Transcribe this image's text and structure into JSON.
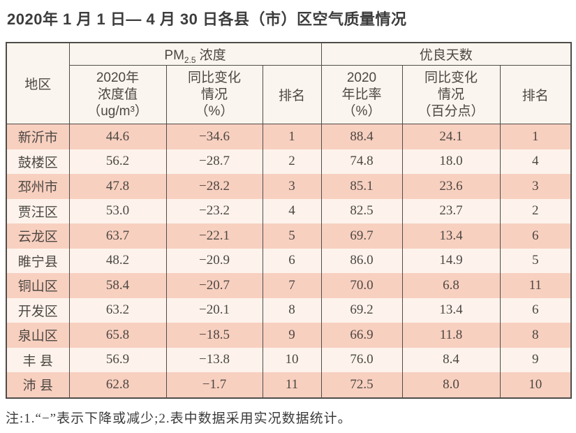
{
  "page": {
    "title": "2020年 1 月 1 日— 4 月 30 日各县（市）区空气质量情况",
    "footnote": "注:1.“−”表示下降或减少;2.表中数据采用实况数据统计。"
  },
  "colors": {
    "row_odd_bg": "#f8d0c0",
    "row_even_bg": "#fdf3ec",
    "header_bg": "#faf5ee",
    "border": "#4f4c49",
    "text": "#4c4742"
  },
  "table": {
    "group_headers": {
      "region": "地区",
      "pm25": {
        "prefix": "PM",
        "sub": "2.5",
        "suffix": "浓度"
      },
      "good_days": "优良天数"
    },
    "sub_headers": {
      "pm25_value_lines": [
        "2020年",
        "浓度值",
        "（ug/m³）"
      ],
      "pm25_change_lines": [
        "同比变化",
        "情况",
        "（%）"
      ],
      "pm25_rank": "排名",
      "good_ratio_lines": [
        "2020",
        "年比率",
        "（%）"
      ],
      "good_change_lines": [
        "同比变化",
        "情况",
        "（百分点）"
      ],
      "good_rank": "排名"
    },
    "rows": [
      {
        "region": "新沂市",
        "pm25_value": "44.6",
        "pm25_change": "−34.6",
        "pm25_rank": "1",
        "good_ratio": "88.4",
        "good_change": "24.1",
        "good_rank": "1"
      },
      {
        "region": "鼓楼区",
        "pm25_value": "56.2",
        "pm25_change": "−28.7",
        "pm25_rank": "2",
        "good_ratio": "74.8",
        "good_change": "18.0",
        "good_rank": "4"
      },
      {
        "region": "邳州市",
        "pm25_value": "47.8",
        "pm25_change": "−28.2",
        "pm25_rank": "3",
        "good_ratio": "85.1",
        "good_change": "23.6",
        "good_rank": "3"
      },
      {
        "region": "贾汪区",
        "pm25_value": "53.0",
        "pm25_change": "−23.2",
        "pm25_rank": "4",
        "good_ratio": "82.5",
        "good_change": "23.7",
        "good_rank": "2"
      },
      {
        "region": "云龙区",
        "pm25_value": "63.7",
        "pm25_change": "−22.1",
        "pm25_rank": "5",
        "good_ratio": "69.7",
        "good_change": "13.4",
        "good_rank": "6"
      },
      {
        "region": "睢宁县",
        "pm25_value": "48.2",
        "pm25_change": "−20.9",
        "pm25_rank": "6",
        "good_ratio": "86.0",
        "good_change": "14.9",
        "good_rank": "5"
      },
      {
        "region": "铜山区",
        "pm25_value": "58.4",
        "pm25_change": "−20.7",
        "pm25_rank": "7",
        "good_ratio": "70.0",
        "good_change": "6.8",
        "good_rank": "11"
      },
      {
        "region": "开发区",
        "pm25_value": "63.2",
        "pm25_change": "−20.1",
        "pm25_rank": "8",
        "good_ratio": "69.2",
        "good_change": "13.4",
        "good_rank": "6"
      },
      {
        "region": "泉山区",
        "pm25_value": "65.8",
        "pm25_change": "−18.5",
        "pm25_rank": "9",
        "good_ratio": "66.9",
        "good_change": "11.8",
        "good_rank": "8"
      },
      {
        "region": "丰 县",
        "pm25_value": "56.9",
        "pm25_change": "−13.8",
        "pm25_rank": "10",
        "good_ratio": "76.0",
        "good_change": "8.4",
        "good_rank": "9"
      },
      {
        "region": "沛 县",
        "pm25_value": "62.8",
        "pm25_change": "−1.7",
        "pm25_rank": "11",
        "good_ratio": "72.5",
        "good_change": "8.0",
        "good_rank": "10"
      }
    ]
  },
  "chart_data": {
    "type": "table",
    "title": "2020年1月1日—4月30日各县（市）区空气质量情况",
    "columns": [
      "地区",
      "PM2.5浓度 2020年浓度值（ug/m³）",
      "PM2.5浓度 同比变化情况（%）",
      "PM2.5浓度 排名",
      "优良天数 2020年比率（%）",
      "优良天数 同比变化情况（百分点）",
      "优良天数 排名"
    ],
    "rows": [
      [
        "新沂市",
        44.6,
        -34.6,
        1,
        88.4,
        24.1,
        1
      ],
      [
        "鼓楼区",
        56.2,
        -28.7,
        2,
        74.8,
        18.0,
        4
      ],
      [
        "邳州市",
        47.8,
        -28.2,
        3,
        85.1,
        23.6,
        3
      ],
      [
        "贾汪区",
        53.0,
        -23.2,
        4,
        82.5,
        23.7,
        2
      ],
      [
        "云龙区",
        63.7,
        -22.1,
        5,
        69.7,
        13.4,
        6
      ],
      [
        "睢宁县",
        48.2,
        -20.9,
        6,
        86.0,
        14.9,
        5
      ],
      [
        "铜山区",
        58.4,
        -20.7,
        7,
        70.0,
        6.8,
        11
      ],
      [
        "开发区",
        63.2,
        -20.1,
        8,
        69.2,
        13.4,
        6
      ],
      [
        "泉山区",
        65.8,
        -18.5,
        9,
        66.9,
        11.8,
        8
      ],
      [
        "丰县",
        56.9,
        -13.8,
        10,
        76.0,
        8.4,
        9
      ],
      [
        "沛县",
        62.8,
        -1.7,
        11,
        72.5,
        8.0,
        10
      ]
    ],
    "footnote": "注:1.“−”表示下降或减少;2.表中数据采用实况数据统计。"
  }
}
